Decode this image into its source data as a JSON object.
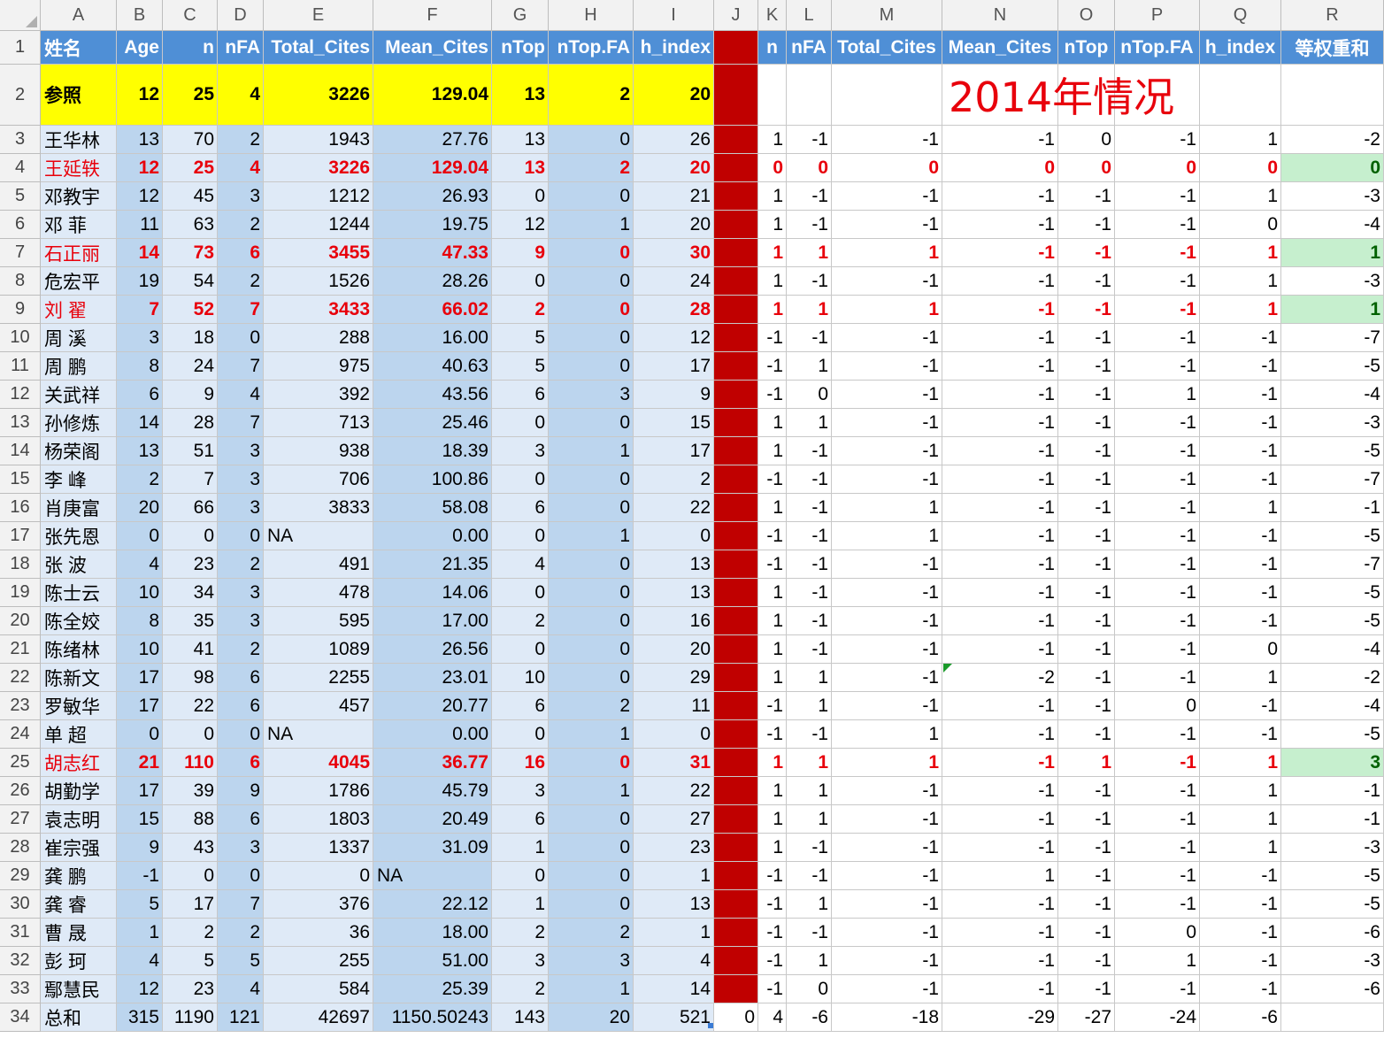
{
  "columns": [
    "A",
    "B",
    "C",
    "D",
    "E",
    "F",
    "G",
    "H",
    "I",
    "J",
    "K",
    "L",
    "M",
    "N",
    "O",
    "P",
    "Q",
    "R"
  ],
  "header_row": [
    "姓名",
    "Age",
    "n",
    "nFA",
    "Total_Cites",
    "Mean_Cites",
    "nTop",
    "nTop.FA",
    "h_index",
    "",
    "n",
    "nFA",
    "Total_Cites",
    "Mean_Cites",
    "nTop",
    "nTop.FA",
    "h_index",
    "等权重和"
  ],
  "title_2014": "2014年情况",
  "reference_row": [
    "参照",
    "12",
    "25",
    "4",
    "3226",
    "129.04",
    "13",
    "2",
    "20"
  ],
  "rows": [
    {
      "name": "王华林",
      "left": [
        "13",
        "70",
        "2",
        "1943",
        "27.76",
        "13",
        "0",
        "26"
      ],
      "right": [
        "1",
        "-1",
        "-1",
        "-1",
        "0",
        "-1",
        "1",
        "-2"
      ]
    },
    {
      "name": "王延轶",
      "left": [
        "12",
        "25",
        "4",
        "3226",
        "129.04",
        "13",
        "2",
        "20"
      ],
      "right": [
        "0",
        "0",
        "0",
        "0",
        "0",
        "0",
        "0",
        "0"
      ],
      "highlight": "red",
      "green": true
    },
    {
      "name": "邓教宇",
      "left": [
        "12",
        "45",
        "3",
        "1212",
        "26.93",
        "0",
        "0",
        "21"
      ],
      "right": [
        "1",
        "-1",
        "-1",
        "-1",
        "-1",
        "-1",
        "1",
        "-3"
      ]
    },
    {
      "name": "邓 菲",
      "left": [
        "11",
        "63",
        "2",
        "1244",
        "19.75",
        "12",
        "1",
        "20"
      ],
      "right": [
        "1",
        "-1",
        "-1",
        "-1",
        "-1",
        "-1",
        "0",
        "-4"
      ]
    },
    {
      "name": "石正丽",
      "left": [
        "14",
        "73",
        "6",
        "3455",
        "47.33",
        "9",
        "0",
        "30"
      ],
      "right": [
        "1",
        "1",
        "1",
        "-1",
        "-1",
        "-1",
        "1",
        "1"
      ],
      "highlight": "red",
      "green": true
    },
    {
      "name": "危宏平",
      "left": [
        "19",
        "54",
        "2",
        "1526",
        "28.26",
        "0",
        "0",
        "24"
      ],
      "right": [
        "1",
        "-1",
        "-1",
        "-1",
        "-1",
        "-1",
        "1",
        "-3"
      ]
    },
    {
      "name": "刘 翟",
      "left": [
        "7",
        "52",
        "7",
        "3433",
        "66.02",
        "2",
        "0",
        "28"
      ],
      "right": [
        "1",
        "1",
        "1",
        "-1",
        "-1",
        "-1",
        "1",
        "1"
      ],
      "highlight": "red",
      "green": true
    },
    {
      "name": "周 溪",
      "left": [
        "3",
        "18",
        "0",
        "288",
        "16.00",
        "5",
        "0",
        "12"
      ],
      "right": [
        "-1",
        "-1",
        "-1",
        "-1",
        "-1",
        "-1",
        "-1",
        "-7"
      ]
    },
    {
      "name": "周 鹏",
      "left": [
        "8",
        "24",
        "7",
        "975",
        "40.63",
        "5",
        "0",
        "17"
      ],
      "right": [
        "-1",
        "1",
        "-1",
        "-1",
        "-1",
        "-1",
        "-1",
        "-5"
      ]
    },
    {
      "name": "关武祥",
      "left": [
        "6",
        "9",
        "4",
        "392",
        "43.56",
        "6",
        "3",
        "9"
      ],
      "right": [
        "-1",
        "0",
        "-1",
        "-1",
        "-1",
        "1",
        "-1",
        "-4"
      ]
    },
    {
      "name": "孙修炼",
      "left": [
        "14",
        "28",
        "7",
        "713",
        "25.46",
        "0",
        "0",
        "15"
      ],
      "right": [
        "1",
        "1",
        "-1",
        "-1",
        "-1",
        "-1",
        "-1",
        "-3"
      ]
    },
    {
      "name": "杨荣阁",
      "left": [
        "13",
        "51",
        "3",
        "938",
        "18.39",
        "3",
        "1",
        "17"
      ],
      "right": [
        "1",
        "-1",
        "-1",
        "-1",
        "-1",
        "-1",
        "-1",
        "-5"
      ]
    },
    {
      "name": "李 峰",
      "left": [
        "2",
        "7",
        "3",
        "706",
        "100.86",
        "0",
        "0",
        "2"
      ],
      "right": [
        "-1",
        "-1",
        "-1",
        "-1",
        "-1",
        "-1",
        "-1",
        "-7"
      ]
    },
    {
      "name": "肖庚富",
      "left": [
        "20",
        "66",
        "3",
        "3833",
        "58.08",
        "6",
        "0",
        "22"
      ],
      "right": [
        "1",
        "-1",
        "1",
        "-1",
        "-1",
        "-1",
        "1",
        "-1"
      ]
    },
    {
      "name": "张先恩",
      "left": [
        "0",
        "0",
        "0",
        "NA",
        "0.00",
        "0",
        "1",
        "0"
      ],
      "right": [
        "-1",
        "-1",
        "1",
        "-1",
        "-1",
        "-1",
        "-1",
        "-5"
      ],
      "naE": true
    },
    {
      "name": "张 波",
      "left": [
        "4",
        "23",
        "2",
        "491",
        "21.35",
        "4",
        "0",
        "13"
      ],
      "right": [
        "-1",
        "-1",
        "-1",
        "-1",
        "-1",
        "-1",
        "-1",
        "-7"
      ]
    },
    {
      "name": "陈士云",
      "left": [
        "10",
        "34",
        "3",
        "478",
        "14.06",
        "0",
        "0",
        "13"
      ],
      "right": [
        "1",
        "-1",
        "-1",
        "-1",
        "-1",
        "-1",
        "-1",
        "-5"
      ]
    },
    {
      "name": "陈全姣",
      "left": [
        "8",
        "35",
        "3",
        "595",
        "17.00",
        "2",
        "0",
        "16"
      ],
      "right": [
        "1",
        "-1",
        "-1",
        "-1",
        "-1",
        "-1",
        "-1",
        "-5"
      ]
    },
    {
      "name": "陈绪林",
      "left": [
        "10",
        "41",
        "2",
        "1089",
        "26.56",
        "0",
        "0",
        "20"
      ],
      "right": [
        "1",
        "-1",
        "-1",
        "-1",
        "-1",
        "-1",
        "0",
        "-4"
      ]
    },
    {
      "name": "陈新文",
      "left": [
        "17",
        "98",
        "6",
        "2255",
        "23.01",
        "10",
        "0",
        "29"
      ],
      "right": [
        "1",
        "1",
        "-1",
        "-2",
        "-1",
        "-1",
        "1",
        "-2"
      ]
    },
    {
      "name": "罗敏华",
      "left": [
        "17",
        "22",
        "6",
        "457",
        "20.77",
        "6",
        "2",
        "11"
      ],
      "right": [
        "-1",
        "1",
        "-1",
        "-1",
        "-1",
        "0",
        "-1",
        "-4"
      ]
    },
    {
      "name": "单 超",
      "left": [
        "0",
        "0",
        "0",
        "NA",
        "0.00",
        "0",
        "1",
        "0"
      ],
      "right": [
        "-1",
        "-1",
        "1",
        "-1",
        "-1",
        "-1",
        "-1",
        "-5"
      ],
      "naE": true
    },
    {
      "name": "胡志红",
      "left": [
        "21",
        "110",
        "6",
        "4045",
        "36.77",
        "16",
        "0",
        "31"
      ],
      "right": [
        "1",
        "1",
        "1",
        "-1",
        "1",
        "-1",
        "1",
        "3"
      ],
      "highlight": "red",
      "green": true
    },
    {
      "name": "胡勤学",
      "left": [
        "17",
        "39",
        "9",
        "1786",
        "45.79",
        "3",
        "1",
        "22"
      ],
      "right": [
        "1",
        "1",
        "-1",
        "-1",
        "-1",
        "-1",
        "1",
        "-1"
      ]
    },
    {
      "name": "袁志明",
      "left": [
        "15",
        "88",
        "6",
        "1803",
        "20.49",
        "6",
        "0",
        "27"
      ],
      "right": [
        "1",
        "1",
        "-1",
        "-1",
        "-1",
        "-1",
        "1",
        "-1"
      ]
    },
    {
      "name": "崔宗强",
      "left": [
        "9",
        "43",
        "3",
        "1337",
        "31.09",
        "1",
        "0",
        "23"
      ],
      "right": [
        "1",
        "-1",
        "-1",
        "-1",
        "-1",
        "-1",
        "1",
        "-3"
      ]
    },
    {
      "name": "龚 鹏",
      "left": [
        "-1",
        "0",
        "0",
        "0",
        "NA",
        "0",
        "0",
        "1"
      ],
      "right": [
        "-1",
        "-1",
        "-1",
        "1",
        "-1",
        "-1",
        "-1",
        "-5"
      ],
      "naF": true
    },
    {
      "name": "龚 睿",
      "left": [
        "5",
        "17",
        "7",
        "376",
        "22.12",
        "1",
        "0",
        "13"
      ],
      "right": [
        "-1",
        "1",
        "-1",
        "-1",
        "-1",
        "-1",
        "-1",
        "-5"
      ]
    },
    {
      "name": "曹 晟",
      "left": [
        "1",
        "2",
        "2",
        "36",
        "18.00",
        "2",
        "2",
        "1"
      ],
      "right": [
        "-1",
        "-1",
        "-1",
        "-1",
        "-1",
        "0",
        "-1",
        "-6"
      ]
    },
    {
      "name": "彭 珂",
      "left": [
        "4",
        "5",
        "5",
        "255",
        "51.00",
        "3",
        "3",
        "4"
      ],
      "right": [
        "-1",
        "1",
        "-1",
        "-1",
        "-1",
        "1",
        "-1",
        "-3"
      ]
    },
    {
      "name": "鄢慧民",
      "left": [
        "12",
        "23",
        "4",
        "584",
        "25.39",
        "2",
        "1",
        "14"
      ],
      "right": [
        "-1",
        "0",
        "-1",
        "-1",
        "-1",
        "-1",
        "-1",
        "-6"
      ]
    }
  ],
  "total_row": {
    "name": "总和",
    "left": [
      "315",
      "1190",
      "121",
      "42697",
      "1150.50243",
      "143",
      "20",
      "521"
    ],
    "j": "0",
    "right": [
      "4",
      "-6",
      "-18",
      "-29",
      "-27",
      "-24",
      "-6",
      ""
    ]
  }
}
